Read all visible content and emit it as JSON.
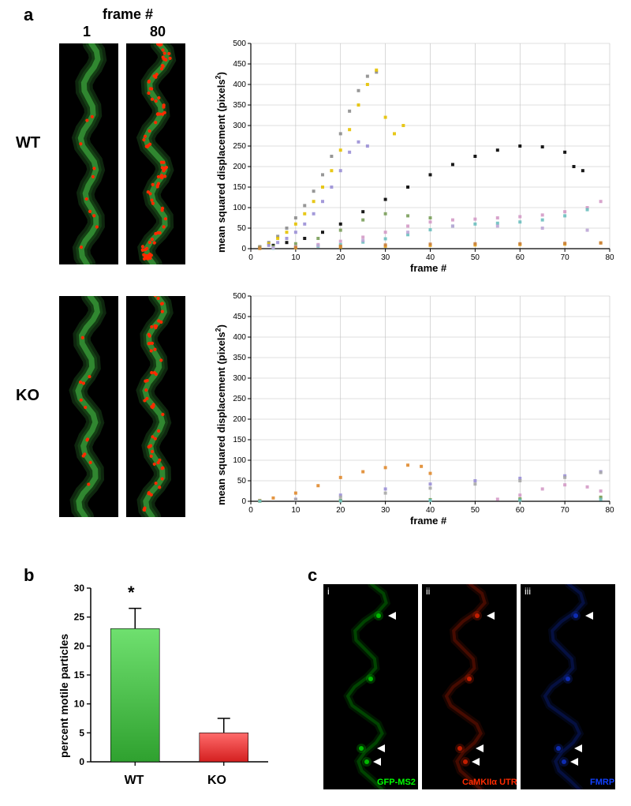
{
  "panelA": {
    "label": "a",
    "frame_header": "frame #",
    "col1": "1",
    "col2": "80",
    "row_wt": "WT",
    "row_ko": "KO",
    "micrograph": {
      "bg": "#000000",
      "dendrite_color": "#1a5a1a",
      "dendrite_bright": "#3fae3f",
      "particle_color": "#ff2a00"
    },
    "chart_wt": {
      "type": "scatter-line",
      "xlabel": "frame #",
      "ylabel": "mean squared displacement (pixels2)",
      "xlim": [
        0,
        80
      ],
      "ylim": [
        0,
        500
      ],
      "xtick_step": 10,
      "ytick_step": 50,
      "bg": "#ffffff",
      "grid_color": "#bfbfbf",
      "axis_color": "#000000",
      "label_fontsize": 13,
      "tick_fontsize": 10,
      "series": [
        {
          "color": "#8c8c8c",
          "marker": "circle",
          "data": [
            [
              2,
              5
            ],
            [
              4,
              15
            ],
            [
              6,
              30
            ],
            [
              8,
              50
            ],
            [
              10,
              75
            ],
            [
              12,
              105
            ],
            [
              14,
              140
            ],
            [
              16,
              180
            ],
            [
              18,
              225
            ],
            [
              20,
              280
            ],
            [
              22,
              335
            ],
            [
              24,
              385
            ],
            [
              26,
              420
            ],
            [
              28,
              430
            ]
          ]
        },
        {
          "color": "#e6c200",
          "marker": "square",
          "data": [
            [
              2,
              4
            ],
            [
              4,
              12
            ],
            [
              6,
              25
            ],
            [
              8,
              40
            ],
            [
              10,
              60
            ],
            [
              12,
              85
            ],
            [
              14,
              115
            ],
            [
              16,
              150
            ],
            [
              18,
              190
            ],
            [
              20,
              240
            ],
            [
              22,
              290
            ],
            [
              24,
              350
            ],
            [
              26,
              400
            ],
            [
              28,
              435
            ],
            [
              30,
              320
            ],
            [
              32,
              280
            ],
            [
              34,
              300
            ]
          ]
        },
        {
          "color": "#000000",
          "marker": "square",
          "data": [
            [
              2,
              3
            ],
            [
              5,
              8
            ],
            [
              8,
              15
            ],
            [
              12,
              25
            ],
            [
              16,
              40
            ],
            [
              20,
              60
            ],
            [
              25,
              90
            ],
            [
              30,
              120
            ],
            [
              35,
              150
            ],
            [
              40,
              180
            ],
            [
              45,
              205
            ],
            [
              50,
              225
            ],
            [
              55,
              240
            ],
            [
              60,
              250
            ],
            [
              65,
              248
            ],
            [
              70,
              235
            ],
            [
              72,
              200
            ],
            [
              74,
              190
            ]
          ]
        },
        {
          "color": "#9a8fd6",
          "marker": "square",
          "data": [
            [
              2,
              3
            ],
            [
              4,
              8
            ],
            [
              6,
              15
            ],
            [
              8,
              25
            ],
            [
              10,
              40
            ],
            [
              12,
              60
            ],
            [
              14,
              85
            ],
            [
              16,
              115
            ],
            [
              18,
              150
            ],
            [
              20,
              190
            ],
            [
              22,
              235
            ],
            [
              24,
              260
            ],
            [
              26,
              250
            ]
          ]
        },
        {
          "color": "#7a9e5a",
          "marker": "diamond",
          "data": [
            [
              2,
              2
            ],
            [
              5,
              5
            ],
            [
              10,
              12
            ],
            [
              15,
              25
            ],
            [
              20,
              45
            ],
            [
              25,
              70
            ],
            [
              30,
              85
            ],
            [
              35,
              80
            ],
            [
              40,
              75
            ]
          ]
        },
        {
          "color": "#d49ac7",
          "marker": "square",
          "data": [
            [
              5,
              2
            ],
            [
              10,
              5
            ],
            [
              15,
              10
            ],
            [
              20,
              18
            ],
            [
              25,
              28
            ],
            [
              30,
              40
            ],
            [
              35,
              55
            ],
            [
              40,
              65
            ],
            [
              45,
              70
            ],
            [
              50,
              72
            ],
            [
              55,
              75
            ],
            [
              60,
              78
            ],
            [
              65,
              82
            ],
            [
              70,
              90
            ],
            [
              75,
              100
            ],
            [
              78,
              115
            ]
          ]
        },
        {
          "color": "#6bbfbf",
          "marker": "square",
          "data": [
            [
              5,
              1
            ],
            [
              10,
              3
            ],
            [
              15,
              6
            ],
            [
              20,
              10
            ],
            [
              25,
              16
            ],
            [
              30,
              24
            ],
            [
              35,
              34
            ],
            [
              40,
              46
            ],
            [
              45,
              55
            ],
            [
              50,
              60
            ],
            [
              55,
              62
            ],
            [
              60,
              65
            ],
            [
              65,
              70
            ],
            [
              70,
              80
            ],
            [
              75,
              95
            ]
          ]
        },
        {
          "color": "#e6a817",
          "marker": "square",
          "data": [
            [
              2,
              0.5
            ],
            [
              10,
              2
            ],
            [
              20,
              4
            ],
            [
              30,
              6
            ],
            [
              40,
              8
            ],
            [
              50,
              9
            ],
            [
              60,
              10
            ],
            [
              70,
              11
            ],
            [
              78,
              14
            ]
          ]
        },
        {
          "color": "#c97f3d",
          "marker": "square",
          "data": [
            [
              2,
              1
            ],
            [
              10,
              3
            ],
            [
              20,
              6
            ],
            [
              30,
              9
            ],
            [
              40,
              11
            ],
            [
              50,
              12
            ],
            [
              60,
              12
            ],
            [
              70,
              13
            ],
            [
              78,
              14
            ]
          ]
        },
        {
          "color": "#bda6d6",
          "marker": "square",
          "data": [
            [
              5,
              2
            ],
            [
              15,
              8
            ],
            [
              25,
              20
            ],
            [
              35,
              40
            ],
            [
              45,
              55
            ],
            [
              55,
              55
            ],
            [
              65,
              50
            ],
            [
              75,
              45
            ]
          ]
        }
      ]
    },
    "chart_ko": {
      "type": "scatter-line",
      "xlabel": "frame #",
      "ylabel": "mean squared displacement (pixels2)",
      "xlim": [
        0,
        80
      ],
      "ylim": [
        0,
        500
      ],
      "xtick_step": 10,
      "ytick_step": 50,
      "bg": "#ffffff",
      "grid_color": "#bfbfbf",
      "axis_color": "#000000",
      "label_fontsize": 13,
      "tick_fontsize": 10,
      "series": [
        {
          "color": "#e08a2e",
          "marker": "square",
          "data": [
            [
              2,
              2
            ],
            [
              5,
              8
            ],
            [
              10,
              20
            ],
            [
              15,
              38
            ],
            [
              20,
              58
            ],
            [
              25,
              72
            ],
            [
              30,
              82
            ],
            [
              35,
              88
            ],
            [
              38,
              85
            ],
            [
              40,
              68
            ]
          ]
        },
        {
          "color": "#9a8fd6",
          "marker": "square",
          "data": [
            [
              2,
              1
            ],
            [
              10,
              5
            ],
            [
              20,
              15
            ],
            [
              30,
              30
            ],
            [
              40,
              42
            ],
            [
              50,
              50
            ],
            [
              60,
              56
            ],
            [
              70,
              62
            ],
            [
              78,
              72
            ]
          ]
        },
        {
          "color": "#a8a8a8",
          "marker": "square",
          "data": [
            [
              2,
              1
            ],
            [
              10,
              4
            ],
            [
              20,
              10
            ],
            [
              30,
              20
            ],
            [
              40,
              32
            ],
            [
              50,
              42
            ],
            [
              60,
              50
            ],
            [
              70,
              58
            ],
            [
              78,
              70
            ]
          ]
        },
        {
          "color": "#e6a817",
          "marker": "square",
          "data": [
            [
              2,
              0.5
            ],
            [
              20,
              1.5
            ],
            [
              40,
              3
            ],
            [
              60,
              5
            ],
            [
              78,
              8
            ]
          ]
        },
        {
          "color": "#7a9e5a",
          "marker": "square",
          "data": [
            [
              2,
              0.5
            ],
            [
              20,
              2
            ],
            [
              40,
              4
            ],
            [
              60,
              6
            ],
            [
              78,
              10
            ]
          ]
        },
        {
          "color": "#d49ac7",
          "marker": "square",
          "data": [
            [
              55,
              5
            ],
            [
              60,
              15
            ],
            [
              65,
              30
            ],
            [
              70,
              40
            ],
            [
              75,
              35
            ],
            [
              78,
              25
            ]
          ]
        },
        {
          "color": "#6bbfbf",
          "marker": "square",
          "data": [
            [
              2,
              0.5
            ],
            [
              20,
              1
            ],
            [
              40,
              2
            ],
            [
              60,
              3
            ],
            [
              78,
              5
            ]
          ]
        }
      ]
    }
  },
  "panelB": {
    "label": "b",
    "type": "bar",
    "ylabel": "percent motile particles",
    "ylim": [
      0,
      30
    ],
    "ytick_step": 5,
    "categories": [
      "WT",
      "KO"
    ],
    "values": [
      23,
      5
    ],
    "errors": [
      3.5,
      2.5
    ],
    "bar_colors": [
      "#2fa12f",
      "#d42020"
    ],
    "bar_gradient_top": [
      "#6fe06f",
      "#ff6a6a"
    ],
    "star_on": 0,
    "axis_color": "#000000",
    "label_fontsize": 14,
    "tick_fontsize": 12,
    "bar_width": 0.55
  },
  "panelC": {
    "label": "c",
    "images": [
      {
        "roman": "i",
        "caption": "GFP-MS2",
        "caption_color": "#00ff00",
        "tint": "#00c800"
      },
      {
        "roman": "ii",
        "caption": "CaMKIIα UTR",
        "caption_color": "#ff2a00",
        "tint": "#d02000"
      },
      {
        "roman": "iii",
        "caption": "FMRP",
        "caption_color": "#1040ff",
        "tint": "#1030c0"
      }
    ],
    "arrowhead_color": "#ffffff",
    "bg": "#000000"
  }
}
